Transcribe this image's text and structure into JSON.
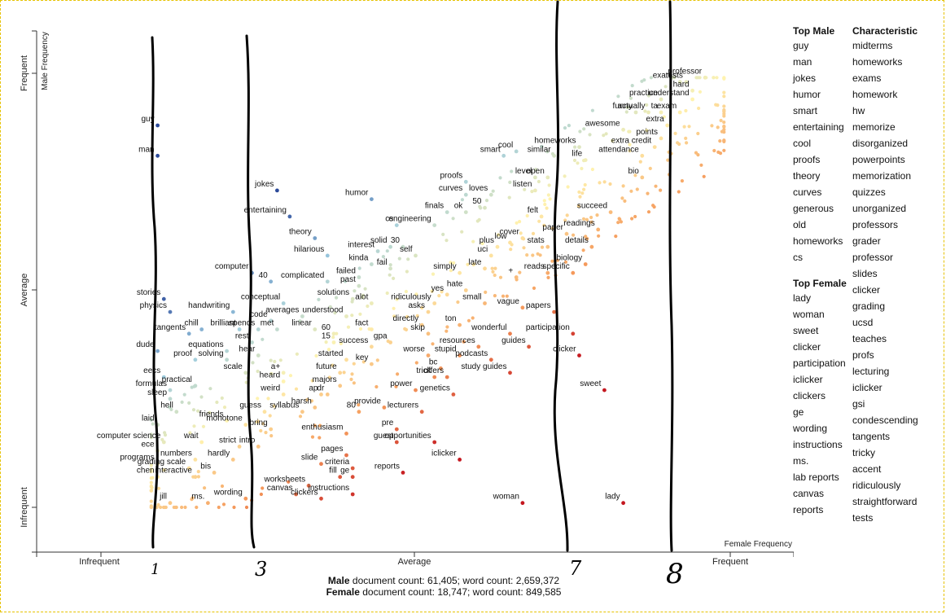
{
  "chart_data": {
    "type": "scatter",
    "title": "",
    "xlabel": "Female Frequency",
    "ylabel": "Male Frequency",
    "x_ticks": [
      "Infrequent",
      "Average",
      "Frequent"
    ],
    "y_ticks": [
      "Infrequent",
      "Average",
      "Frequent"
    ],
    "xlim": [
      0,
      1
    ],
    "ylim": [
      0,
      1
    ],
    "color_scale": {
      "low": "#c4171f",
      "mid": "#fff3b0",
      "high": "#2c4a9a"
    },
    "labeled_points": [
      {
        "term": "guy",
        "x": 0.09,
        "y": 0.88
      },
      {
        "term": "man",
        "x": 0.09,
        "y": 0.81
      },
      {
        "term": "jokes",
        "x": 0.28,
        "y": 0.73
      },
      {
        "term": "entertaining",
        "x": 0.3,
        "y": 0.67
      },
      {
        "term": "humor",
        "x": 0.43,
        "y": 0.71
      },
      {
        "term": "theory",
        "x": 0.34,
        "y": 0.62
      },
      {
        "term": "hilarious",
        "x": 0.36,
        "y": 0.58
      },
      {
        "term": "computer",
        "x": 0.24,
        "y": 0.54
      },
      {
        "term": "40",
        "x": 0.27,
        "y": 0.52
      },
      {
        "term": "complicated",
        "x": 0.36,
        "y": 0.52
      },
      {
        "term": "failed",
        "x": 0.41,
        "y": 0.53
      },
      {
        "term": "past",
        "x": 0.41,
        "y": 0.51
      },
      {
        "term": "kinda",
        "x": 0.43,
        "y": 0.56
      },
      {
        "term": "fail",
        "x": 0.46,
        "y": 0.55
      },
      {
        "term": "interest",
        "x": 0.44,
        "y": 0.59
      },
      {
        "term": "solid",
        "x": 0.46,
        "y": 0.6
      },
      {
        "term": "30",
        "x": 0.48,
        "y": 0.6
      },
      {
        "term": "self",
        "x": 0.5,
        "y": 0.58
      },
      {
        "term": "cs",
        "x": 0.47,
        "y": 0.65
      },
      {
        "term": "engineering",
        "x": 0.53,
        "y": 0.65
      },
      {
        "term": "finals",
        "x": 0.55,
        "y": 0.68
      },
      {
        "term": "ok",
        "x": 0.58,
        "y": 0.68
      },
      {
        "term": "50",
        "x": 0.61,
        "y": 0.69
      },
      {
        "term": "curves",
        "x": 0.58,
        "y": 0.72
      },
      {
        "term": "loves",
        "x": 0.62,
        "y": 0.72
      },
      {
        "term": "proofs",
        "x": 0.58,
        "y": 0.75
      },
      {
        "term": "smart",
        "x": 0.64,
        "y": 0.81
      },
      {
        "term": "cool",
        "x": 0.66,
        "y": 0.82
      },
      {
        "term": "similar",
        "x": 0.72,
        "y": 0.81
      },
      {
        "term": "homeworks",
        "x": 0.76,
        "y": 0.83
      },
      {
        "term": "life",
        "x": 0.77,
        "y": 0.8
      },
      {
        "term": "level",
        "x": 0.69,
        "y": 0.76
      },
      {
        "term": "open",
        "x": 0.71,
        "y": 0.76
      },
      {
        "term": "listen",
        "x": 0.69,
        "y": 0.73
      },
      {
        "term": "felt",
        "x": 0.7,
        "y": 0.67
      },
      {
        "term": "cover",
        "x": 0.67,
        "y": 0.62
      },
      {
        "term": "stats",
        "x": 0.71,
        "y": 0.6
      },
      {
        "term": "paper",
        "x": 0.74,
        "y": 0.63
      },
      {
        "term": "details",
        "x": 0.78,
        "y": 0.6
      },
      {
        "term": "readings",
        "x": 0.79,
        "y": 0.64
      },
      {
        "term": "succeed",
        "x": 0.81,
        "y": 0.68
      },
      {
        "term": "biology",
        "x": 0.77,
        "y": 0.56
      },
      {
        "term": "specific",
        "x": 0.75,
        "y": 0.54
      },
      {
        "term": "reads",
        "x": 0.71,
        "y": 0.54
      },
      {
        "term": "plus",
        "x": 0.63,
        "y": 0.6
      },
      {
        "term": "low",
        "x": 0.65,
        "y": 0.61
      },
      {
        "term": "uci",
        "x": 0.62,
        "y": 0.58
      },
      {
        "term": "late",
        "x": 0.61,
        "y": 0.55
      },
      {
        "term": "simply",
        "x": 0.57,
        "y": 0.54
      },
      {
        "term": "+",
        "x": 0.66,
        "y": 0.53
      },
      {
        "term": "hate",
        "x": 0.58,
        "y": 0.5
      },
      {
        "term": "yes",
        "x": 0.55,
        "y": 0.49
      },
      {
        "term": "small",
        "x": 0.61,
        "y": 0.47
      },
      {
        "term": "vague",
        "x": 0.67,
        "y": 0.46
      },
      {
        "term": "papers",
        "x": 0.72,
        "y": 0.45
      },
      {
        "term": "ridiculously",
        "x": 0.53,
        "y": 0.47
      },
      {
        "term": "asks",
        "x": 0.52,
        "y": 0.45
      },
      {
        "term": "alot",
        "x": 0.43,
        "y": 0.47
      },
      {
        "term": "solutions",
        "x": 0.4,
        "y": 0.48
      },
      {
        "term": "understood",
        "x": 0.39,
        "y": 0.44
      },
      {
        "term": "directly",
        "x": 0.51,
        "y": 0.42
      },
      {
        "term": "fact",
        "x": 0.43,
        "y": 0.41
      },
      {
        "term": "skip",
        "x": 0.52,
        "y": 0.4
      },
      {
        "term": "ton",
        "x": 0.57,
        "y": 0.42
      },
      {
        "term": "wonderful",
        "x": 0.65,
        "y": 0.4
      },
      {
        "term": "guides",
        "x": 0.68,
        "y": 0.37
      },
      {
        "term": "participation",
        "x": 0.75,
        "y": 0.4
      },
      {
        "term": "clicker",
        "x": 0.76,
        "y": 0.35
      },
      {
        "term": "sweet",
        "x": 0.8,
        "y": 0.27
      },
      {
        "term": "resources",
        "x": 0.6,
        "y": 0.37
      },
      {
        "term": "stupid",
        "x": 0.57,
        "y": 0.35
      },
      {
        "term": "podcasts",
        "x": 0.62,
        "y": 0.34
      },
      {
        "term": "study guides",
        "x": 0.65,
        "y": 0.31
      },
      {
        "term": "worse",
        "x": 0.52,
        "y": 0.35
      },
      {
        "term": "gpa",
        "x": 0.46,
        "y": 0.38
      },
      {
        "term": "bc",
        "x": 0.54,
        "y": 0.32
      },
      {
        "term": "offers",
        "x": 0.55,
        "y": 0.3
      },
      {
        "term": "trick",
        "x": 0.53,
        "y": 0.3
      },
      {
        "term": "genetics",
        "x": 0.56,
        "y": 0.26
      },
      {
        "term": "power",
        "x": 0.5,
        "y": 0.27
      },
      {
        "term": "lecturers",
        "x": 0.51,
        "y": 0.22
      },
      {
        "term": "provide",
        "x": 0.45,
        "y": 0.23
      },
      {
        "term": "pre",
        "x": 0.47,
        "y": 0.18
      },
      {
        "term": "guest",
        "x": 0.47,
        "y": 0.15
      },
      {
        "term": "opportunities",
        "x": 0.53,
        "y": 0.15
      },
      {
        "term": "iclicker",
        "x": 0.57,
        "y": 0.11
      },
      {
        "term": "reports",
        "x": 0.48,
        "y": 0.08
      },
      {
        "term": "success",
        "x": 0.43,
        "y": 0.37
      },
      {
        "term": "key",
        "x": 0.43,
        "y": 0.33
      },
      {
        "term": "started",
        "x": 0.39,
        "y": 0.34
      },
      {
        "term": "future",
        "x": 0.38,
        "y": 0.31
      },
      {
        "term": "majors",
        "x": 0.38,
        "y": 0.28
      },
      {
        "term": "dr",
        "x": 0.36,
        "y": 0.26
      },
      {
        "term": "ap",
        "x": 0.35,
        "y": 0.26
      },
      {
        "term": "80",
        "x": 0.41,
        "y": 0.22
      },
      {
        "term": "harsh",
        "x": 0.34,
        "y": 0.23
      },
      {
        "term": "enthusiasm",
        "x": 0.39,
        "y": 0.17
      },
      {
        "term": "pages",
        "x": 0.39,
        "y": 0.12
      },
      {
        "term": "criteria",
        "x": 0.4,
        "y": 0.09
      },
      {
        "term": "ge",
        "x": 0.4,
        "y": 0.07
      },
      {
        "term": "fill",
        "x": 0.38,
        "y": 0.07
      },
      {
        "term": "slide",
        "x": 0.35,
        "y": 0.1
      },
      {
        "term": "worksheets",
        "x": 0.33,
        "y": 0.05
      },
      {
        "term": "canvas",
        "x": 0.31,
        "y": 0.03
      },
      {
        "term": "clickers",
        "x": 0.35,
        "y": 0.02
      },
      {
        "term": "instructions",
        "x": 0.4,
        "y": 0.03
      },
      {
        "term": "woman",
        "x": 0.67,
        "y": 0.01
      },
      {
        "term": "lady",
        "x": 0.83,
        "y": 0.01
      },
      {
        "term": "handwriting",
        "x": 0.21,
        "y": 0.45
      },
      {
        "term": "conceptual",
        "x": 0.29,
        "y": 0.47
      },
      {
        "term": "averages",
        "x": 0.32,
        "y": 0.44
      },
      {
        "term": "code",
        "x": 0.27,
        "y": 0.43
      },
      {
        "term": "spends",
        "x": 0.25,
        "y": 0.41
      },
      {
        "term": "met",
        "x": 0.28,
        "y": 0.41
      },
      {
        "term": "linear",
        "x": 0.34,
        "y": 0.41
      },
      {
        "term": "60",
        "x": 0.37,
        "y": 0.4
      },
      {
        "term": "15",
        "x": 0.37,
        "y": 0.38
      },
      {
        "term": "chill",
        "x": 0.16,
        "y": 0.41
      },
      {
        "term": "brilliant",
        "x": 0.22,
        "y": 0.41
      },
      {
        "term": "rest",
        "x": 0.24,
        "y": 0.38
      },
      {
        "term": "hear",
        "x": 0.25,
        "y": 0.35
      },
      {
        "term": "equations",
        "x": 0.2,
        "y": 0.36
      },
      {
        "term": "solving",
        "x": 0.2,
        "y": 0.34
      },
      {
        "term": "scale",
        "x": 0.23,
        "y": 0.31
      },
      {
        "term": "a+",
        "x": 0.29,
        "y": 0.31
      },
      {
        "term": "heard",
        "x": 0.29,
        "y": 0.29
      },
      {
        "term": "weird",
        "x": 0.29,
        "y": 0.26
      },
      {
        "term": "syllabus",
        "x": 0.32,
        "y": 0.22
      },
      {
        "term": "guess",
        "x": 0.26,
        "y": 0.22
      },
      {
        "term": "bring",
        "x": 0.27,
        "y": 0.18
      },
      {
        "term": "monotone",
        "x": 0.23,
        "y": 0.19
      },
      {
        "term": "friends",
        "x": 0.2,
        "y": 0.2
      },
      {
        "term": "intro",
        "x": 0.25,
        "y": 0.14
      },
      {
        "term": "strict",
        "x": 0.22,
        "y": 0.14
      },
      {
        "term": "hardly",
        "x": 0.21,
        "y": 0.11
      },
      {
        "term": "wait",
        "x": 0.16,
        "y": 0.15
      },
      {
        "term": "numbers",
        "x": 0.15,
        "y": 0.11
      },
      {
        "term": "grading scale",
        "x": 0.14,
        "y": 0.09
      },
      {
        "term": "interactive",
        "x": 0.15,
        "y": 0.07
      },
      {
        "term": "bis",
        "x": 0.18,
        "y": 0.08
      },
      {
        "term": "wording",
        "x": 0.23,
        "y": 0.02
      },
      {
        "term": "ms.",
        "x": 0.17,
        "y": 0.01
      },
      {
        "term": "jill",
        "x": 0.11,
        "y": 0.01
      },
      {
        "term": "stories",
        "x": 0.1,
        "y": 0.48
      },
      {
        "term": "physics",
        "x": 0.11,
        "y": 0.45
      },
      {
        "term": "tangents",
        "x": 0.14,
        "y": 0.4
      },
      {
        "term": "dude",
        "x": 0.09,
        "y": 0.36
      },
      {
        "term": "proof",
        "x": 0.15,
        "y": 0.34
      },
      {
        "term": "eecs",
        "x": 0.1,
        "y": 0.3
      },
      {
        "term": "formulas",
        "x": 0.11,
        "y": 0.27
      },
      {
        "term": "practical",
        "x": 0.15,
        "y": 0.28
      },
      {
        "term": "sleep",
        "x": 0.11,
        "y": 0.25
      },
      {
        "term": "hell",
        "x": 0.12,
        "y": 0.22
      },
      {
        "term": "laid",
        "x": 0.09,
        "y": 0.19
      },
      {
        "term": "computer science",
        "x": 0.1,
        "y": 0.15
      },
      {
        "term": "ece",
        "x": 0.09,
        "y": 0.13
      },
      {
        "term": "programs",
        "x": 0.09,
        "y": 0.1
      },
      {
        "term": "chen",
        "x": 0.09,
        "y": 0.07
      },
      {
        "term": "funny",
        "x": 0.85,
        "y": 0.91
      },
      {
        "term": "actually",
        "x": 0.87,
        "y": 0.91
      },
      {
        "term": "ta",
        "x": 0.89,
        "y": 0.91
      },
      {
        "term": "practice",
        "x": 0.89,
        "y": 0.94
      },
      {
        "term": "awesome",
        "x": 0.83,
        "y": 0.87
      },
      {
        "term": "exams",
        "x": 0.92,
        "y": 0.98
      },
      {
        "term": "tests",
        "x": 0.93,
        "y": 0.98
      },
      {
        "term": "professor",
        "x": 0.96,
        "y": 0.99
      },
      {
        "term": "hard",
        "x": 0.94,
        "y": 0.96
      },
      {
        "term": "understand",
        "x": 0.94,
        "y": 0.94
      },
      {
        "term": "exam",
        "x": 0.92,
        "y": 0.91
      },
      {
        "term": "extra",
        "x": 0.9,
        "y": 0.88
      },
      {
        "term": "points",
        "x": 0.89,
        "y": 0.85
      },
      {
        "term": "extra credit",
        "x": 0.88,
        "y": 0.83
      },
      {
        "term": "attendance",
        "x": 0.86,
        "y": 0.81
      },
      {
        "term": "bio",
        "x": 0.86,
        "y": 0.76
      }
    ]
  },
  "axes": {
    "y_title": "Male Frequency",
    "x_title": "Female Frequency",
    "x_ticks": [
      "Infrequent",
      "Average",
      "Frequent"
    ],
    "y_ticks": [
      "Infrequent",
      "Average",
      "Frequent"
    ]
  },
  "sidebar": {
    "male_header": "Top Male",
    "male_terms": [
      "guy",
      "man",
      "jokes",
      "humor",
      "smart",
      "entertaining",
      "cool",
      "proofs",
      "theory",
      "curves",
      "generous",
      "old",
      "homeworks",
      "cs"
    ],
    "female_header": "Top Female",
    "female_terms": [
      "lady",
      "woman",
      "sweet",
      "clicker",
      "participation",
      "iclicker",
      "clickers",
      "ge",
      "wording",
      "instructions",
      "ms.",
      "lab reports",
      "canvas",
      "reports"
    ],
    "char_header": "Characteristic",
    "char_terms": [
      "midterms",
      "homeworks",
      "exams",
      "homework",
      "hw",
      "memorize",
      "disorganized",
      "powerpoints",
      "memorization",
      "quizzes",
      "unorganized",
      "professors",
      "grader",
      "professor",
      "slides",
      "clicker",
      "grading",
      "ucsd",
      "teaches",
      "profs",
      "lecturing",
      "iclicker",
      "gsi",
      "condescending",
      "tangents",
      "tricky",
      "accent",
      "ridiculously",
      "straightforward",
      "tests"
    ]
  },
  "footer": {
    "male_bold": "Male",
    "male_rest": " document count: 61,405; word count: 2,659,372",
    "female_bold": "Female",
    "female_rest": " document count: 18,747; word count: 849,585"
  },
  "annotations": {
    "handwritten_digits": [
      "1",
      "3",
      "7",
      "8"
    ]
  }
}
